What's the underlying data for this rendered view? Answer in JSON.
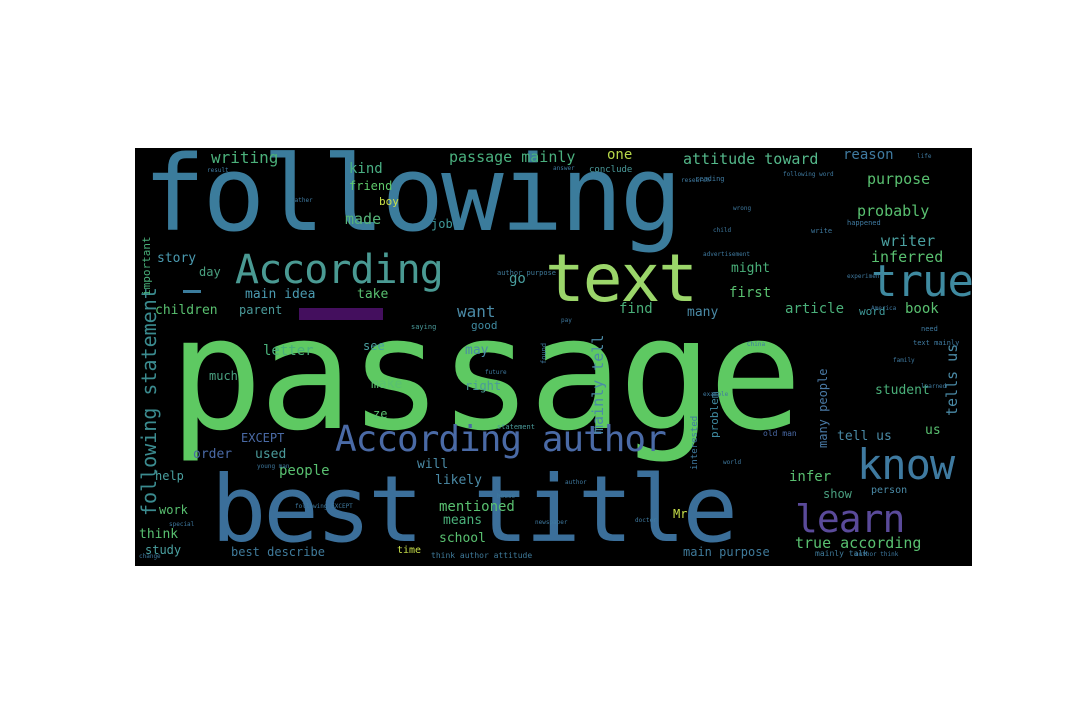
{
  "words": [
    {
      "text": "passage",
      "color": "#5ec962"
    },
    {
      "text": "following",
      "color": "#3b7c9c"
    },
    {
      "text": "best title",
      "color": "#3b6f9a"
    },
    {
      "text": "text",
      "color": "#9bd66a"
    },
    {
      "text": "According",
      "color": "#4a9a93"
    },
    {
      "text": "true",
      "color": "#3f8aa0"
    },
    {
      "text": "know",
      "color": "#3f7aa0"
    },
    {
      "text": "According author",
      "color": "#4a6aa6"
    },
    {
      "text": "learn",
      "color": "#5a4a9a"
    },
    {
      "text": "following statement",
      "color": "#3b8b8f"
    },
    {
      "text": "writing",
      "color": "#4bb07a"
    },
    {
      "text": "kind",
      "color": "#4ab084"
    },
    {
      "text": "friend",
      "color": "#5ec96b"
    },
    {
      "text": "boy",
      "color": "#c8e04a"
    },
    {
      "text": "made",
      "color": "#57b57a"
    },
    {
      "text": "job",
      "color": "#3f9a9a"
    },
    {
      "text": "passage mainly",
      "color": "#4ab07e"
    },
    {
      "text": "one",
      "color": "#b8d84a"
    },
    {
      "text": "attitude toward",
      "color": "#54b88a"
    },
    {
      "text": "reason",
      "color": "#3f7aa0"
    },
    {
      "text": "purpose",
      "color": "#59c070"
    },
    {
      "text": "probably",
      "color": "#59c070"
    },
    {
      "text": "writer",
      "color": "#4aa0a0"
    },
    {
      "text": "inferred",
      "color": "#59c070"
    },
    {
      "text": "might",
      "color": "#4ab07a"
    },
    {
      "text": "story",
      "color": "#4a9ab0"
    },
    {
      "text": "day",
      "color": "#4aa080"
    },
    {
      "text": "main idea",
      "color": "#4a9ab0"
    },
    {
      "text": "take",
      "color": "#59c070"
    },
    {
      "text": "go",
      "color": "#4aa0a0"
    },
    {
      "text": "children",
      "color": "#59c070"
    },
    {
      "text": "parent",
      "color": "#4a9a9a"
    },
    {
      "text": "want",
      "color": "#4a8aa6"
    },
    {
      "text": "first",
      "color": "#59c070"
    },
    {
      "text": "article",
      "color": "#4ab07a"
    },
    {
      "text": "book",
      "color": "#59c070"
    },
    {
      "text": "word",
      "color": "#3f9a9a"
    },
    {
      "text": "find",
      "color": "#4ab07a"
    },
    {
      "text": "many",
      "color": "#4a8aa6"
    },
    {
      "text": "good",
      "color": "#3f8aa0"
    },
    {
      "text": "letter",
      "color": "#4ab07a"
    },
    {
      "text": "see",
      "color": "#4aa0a0"
    },
    {
      "text": "may",
      "color": "#4a8aa6"
    },
    {
      "text": "much",
      "color": "#4aa080"
    },
    {
      "text": "make",
      "color": "#59c070"
    },
    {
      "text": "right",
      "color": "#4a9a9a"
    },
    {
      "text": "mainly tell",
      "color": "#4a8aa6"
    },
    {
      "text": "student",
      "color": "#4ab07a"
    },
    {
      "text": "tells us",
      "color": "#4a8aa6"
    },
    {
      "text": "many people",
      "color": "#4a7aa6"
    },
    {
      "text": "tell us",
      "color": "#4a8aa6"
    },
    {
      "text": "us",
      "color": "#59c070"
    },
    {
      "text": "EXCEPT",
      "color": "#4a6aa6"
    },
    {
      "text": "ze",
      "color": "#59c070"
    },
    {
      "text": "order",
      "color": "#4a6aa6"
    },
    {
      "text": "used",
      "color": "#4a9a9a"
    },
    {
      "text": "people",
      "color": "#59c070"
    },
    {
      "text": "will",
      "color": "#4a8aa6"
    },
    {
      "text": "likely",
      "color": "#4a8aa6"
    },
    {
      "text": "infer",
      "color": "#59c070"
    },
    {
      "text": "help",
      "color": "#4aa0a0"
    },
    {
      "text": "show",
      "color": "#4aa080"
    },
    {
      "text": "work",
      "color": "#59c070"
    },
    {
      "text": "mentioned",
      "color": "#59c070"
    },
    {
      "text": "means",
      "color": "#4ab07a"
    },
    {
      "text": "Mr",
      "color": "#c8e04a"
    },
    {
      "text": "think",
      "color": "#59c070"
    },
    {
      "text": "school",
      "color": "#59c070"
    },
    {
      "text": "true according",
      "color": "#59c070"
    },
    {
      "text": "study",
      "color": "#4aa0a0"
    },
    {
      "text": "best describe",
      "color": "#3f7a9a"
    },
    {
      "text": "time",
      "color": "#c8e04a"
    },
    {
      "text": "think author attitude",
      "color": "#3f7a9a"
    },
    {
      "text": "main purpose",
      "color": "#3f7a9a"
    },
    {
      "text": "mainly talk",
      "color": "#3f7a9a"
    },
    {
      "text": "important",
      "color": "#4ab07a"
    },
    {
      "text": "person",
      "color": "#4a8aa6"
    },
    {
      "text": "old man",
      "color": "#4a6aa6"
    },
    {
      "text": "problem",
      "color": "#3f8aa0"
    },
    {
      "text": "saying",
      "color": "#4a9a9a"
    },
    {
      "text": "statement",
      "color": "#4a9a9a"
    },
    {
      "text": "conclude",
      "color": "#4a9a9a"
    },
    {
      "text": "reading",
      "color": "#3f7aa0"
    },
    {
      "text": "author purpose",
      "color": "#3f7a9a"
    },
    {
      "text": "happened",
      "color": "#3f7aa0"
    },
    {
      "text": "experiment",
      "color": "#3f7aa0"
    },
    {
      "text": "advertisement",
      "color": "#3f7aa0"
    },
    {
      "text": "newspaper",
      "color": "#3f7aa0"
    },
    {
      "text": "family",
      "color": "#3f7aa0"
    },
    {
      "text": "need",
      "color": "#3f7aa0"
    },
    {
      "text": "learned",
      "color": "#3f7aa0"
    },
    {
      "text": "world",
      "color": "#3f7aa0"
    },
    {
      "text": "house",
      "color": "#3f7aa0"
    },
    {
      "text": "example",
      "color": "#3f7aa0"
    },
    {
      "text": "interested",
      "color": "#3f7aa0"
    },
    {
      "text": "special",
      "color": "#3f7aa0"
    },
    {
      "text": "father",
      "color": "#3f7aa0"
    },
    {
      "text": "write",
      "color": "#3f7aa0"
    },
    {
      "text": "America",
      "color": "#3f7aa0"
    },
    {
      "text": "doctor",
      "color": "#3f7aa0"
    },
    {
      "text": "young man",
      "color": "#3f7aa0"
    },
    {
      "text": "future",
      "color": "#3f7aa0"
    },
    {
      "text": "life",
      "color": "#3f7aa0"
    },
    {
      "text": "text mainly",
      "color": "#3f7aa0"
    },
    {
      "text": "following EXCEPT",
      "color": "#3f7aa0"
    },
    {
      "text": "author",
      "color": "#3f7aa0"
    },
    {
      "text": "answer",
      "color": "#3f7aa0"
    },
    {
      "text": "research",
      "color": "#3f7aa0"
    },
    {
      "text": "change",
      "color": "#3f7aa0"
    },
    {
      "text": "following word",
      "color": "#3f7aa0"
    },
    {
      "text": "child",
      "color": "#3f7aa0"
    },
    {
      "text": "wrong",
      "color": "#3f7aa0"
    },
    {
      "text": "result",
      "color": "#3f7aa0"
    },
    {
      "text": "author think",
      "color": "#3f7aa0"
    },
    {
      "text": "pay",
      "color": "#3f7aa0"
    },
    {
      "text": "found",
      "color": "#3f7aa0"
    },
    {
      "text": "China",
      "color": "#3f7aa0"
    }
  ]
}
